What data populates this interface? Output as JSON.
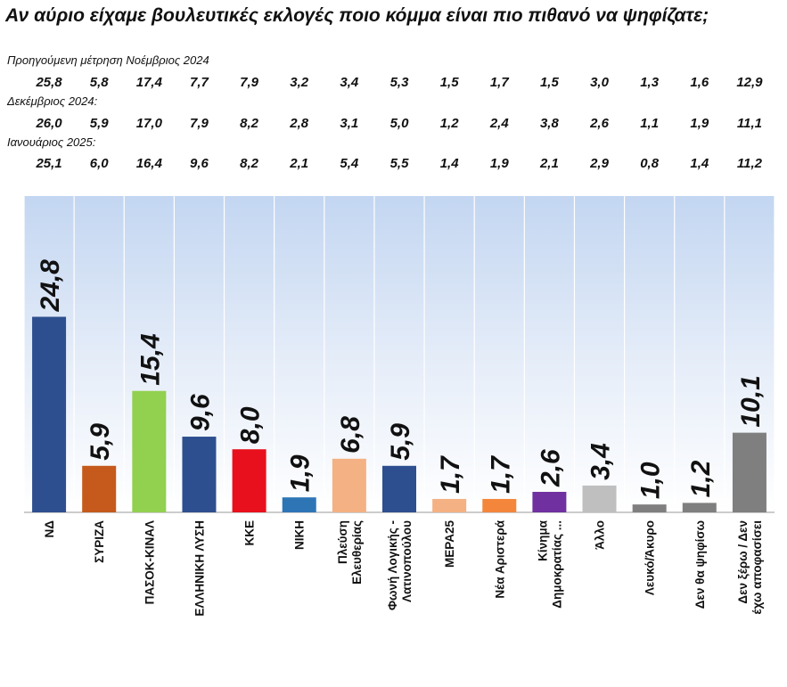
{
  "title": "Αν αύριο είχαμε βουλευτικές εκλογές ποιο κόμμα είναι πιο πιθανό να ψηφίζατε;",
  "previous_measurements": [
    {
      "label": "Προηγούμενη μέτρηση Νοέμβριος 2024",
      "values": [
        "25,8",
        "5,8",
        "17,4",
        "7,7",
        "7,9",
        "3,2",
        "3,4",
        "5,3",
        "1,5",
        "1,7",
        "1,5",
        "3,0",
        "1,3",
        "1,6",
        "12,9"
      ]
    },
    {
      "label": "Δεκέμβριος 2024:",
      "values": [
        "26,0",
        "5,9",
        "17,0",
        "7,9",
        "8,2",
        "2,8",
        "3,1",
        "5,0",
        "1,2",
        "2,4",
        "3,8",
        "2,6",
        "1,1",
        "1,9",
        "11,1"
      ]
    },
    {
      "label": "Ιανουάριος 2025:",
      "values": [
        "25,1",
        "6,0",
        "16,4",
        "9,6",
        "8,2",
        "2,1",
        "5,4",
        "5,5",
        "1,4",
        "1,9",
        "2,1",
        "2,9",
        "0,8",
        "1,4",
        "11,2"
      ]
    }
  ],
  "chart_data": {
    "type": "bar",
    "title": "",
    "xlabel": "",
    "ylabel": "",
    "ylim": [
      0,
      30
    ],
    "grid": false,
    "categories": [
      [
        "ΝΔ"
      ],
      [
        "ΣΥΡΙΖΑ"
      ],
      [
        "ΠΑΣΟΚ-ΚΙΝΑΛ"
      ],
      [
        "ΕΛΛΗΝΙΚΗ ΛΥΣΗ"
      ],
      [
        "ΚΚΕ"
      ],
      [
        "ΝΙΚΗ"
      ],
      [
        "Πλεύση",
        "Ελευθερίας"
      ],
      [
        "Φωνή Λογικής -",
        "Λατινοπούλου"
      ],
      [
        "ΜΕΡΑ25"
      ],
      [
        "Νέα Αριστερά"
      ],
      [
        "Κίνημα",
        "Δημοκρατίας ..."
      ],
      [
        "Άλλο"
      ],
      [
        "Λευκό/Άκυρο"
      ],
      [
        "Δεν θα ψηφίσω"
      ],
      [
        "Δεν ξέρω / Δεν",
        "έχω αποφασίσει"
      ]
    ],
    "values": [
      24.8,
      5.9,
      15.4,
      9.6,
      8.0,
      1.9,
      6.8,
      5.9,
      1.7,
      1.7,
      2.6,
      3.4,
      1.0,
      1.2,
      10.1
    ],
    "value_labels": [
      "24,8",
      "5,9",
      "15,4",
      "9,6",
      "8,0",
      "1,9",
      "6,8",
      "5,9",
      "1,7",
      "1,7",
      "2,6",
      "3,4",
      "1,0",
      "1,2",
      "10,1"
    ],
    "colors": [
      "#2e4f8f",
      "#c55a1c",
      "#92d050",
      "#2e4f8f",
      "#e8101c",
      "#2e75b6",
      "#f4b183",
      "#2e4f8f",
      "#f4b183",
      "#f4863c",
      "#7030a0",
      "#bfbfbf",
      "#7f7f7f",
      "#7f7f7f",
      "#7f7f7f"
    ]
  }
}
